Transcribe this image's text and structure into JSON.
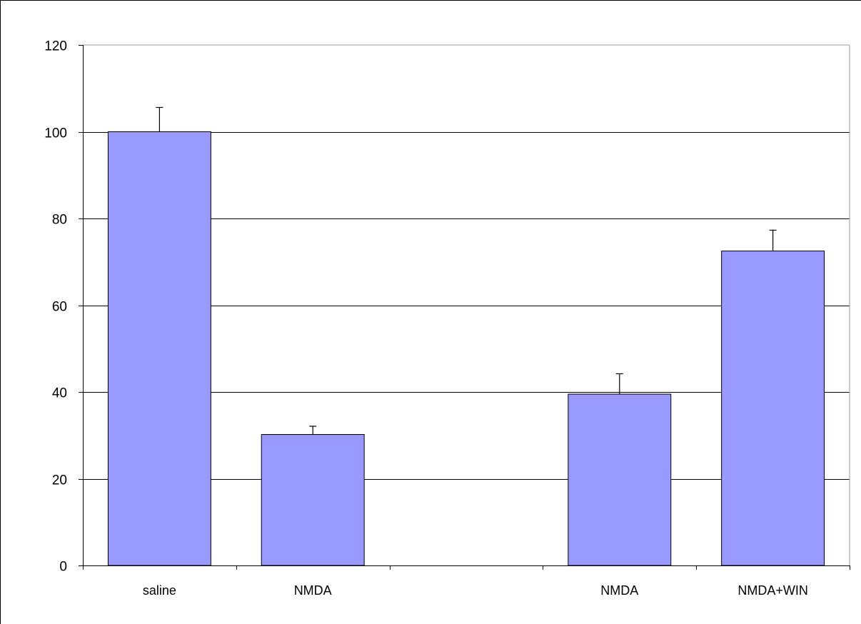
{
  "chart_data": {
    "type": "bar",
    "title": "",
    "xlabel": "",
    "ylabel": "",
    "slots": [
      "saline",
      "NMDA",
      "",
      "NMDA",
      "NMDA+WIN"
    ],
    "values": [
      100,
      30.2,
      null,
      39.5,
      72.5
    ],
    "errors": [
      5.6,
      1.9,
      null,
      4.7,
      4.8
    ],
    "ylim": [
      0,
      120
    ],
    "yticks": [
      0,
      20,
      40,
      60,
      80,
      100,
      120
    ],
    "grid": true,
    "legend": "none",
    "colors": {
      "bar_fill": "#9999ff",
      "bar_stroke": "#000000",
      "grid": "#000000",
      "axis": "#000000",
      "plot_border": "#999999"
    }
  }
}
